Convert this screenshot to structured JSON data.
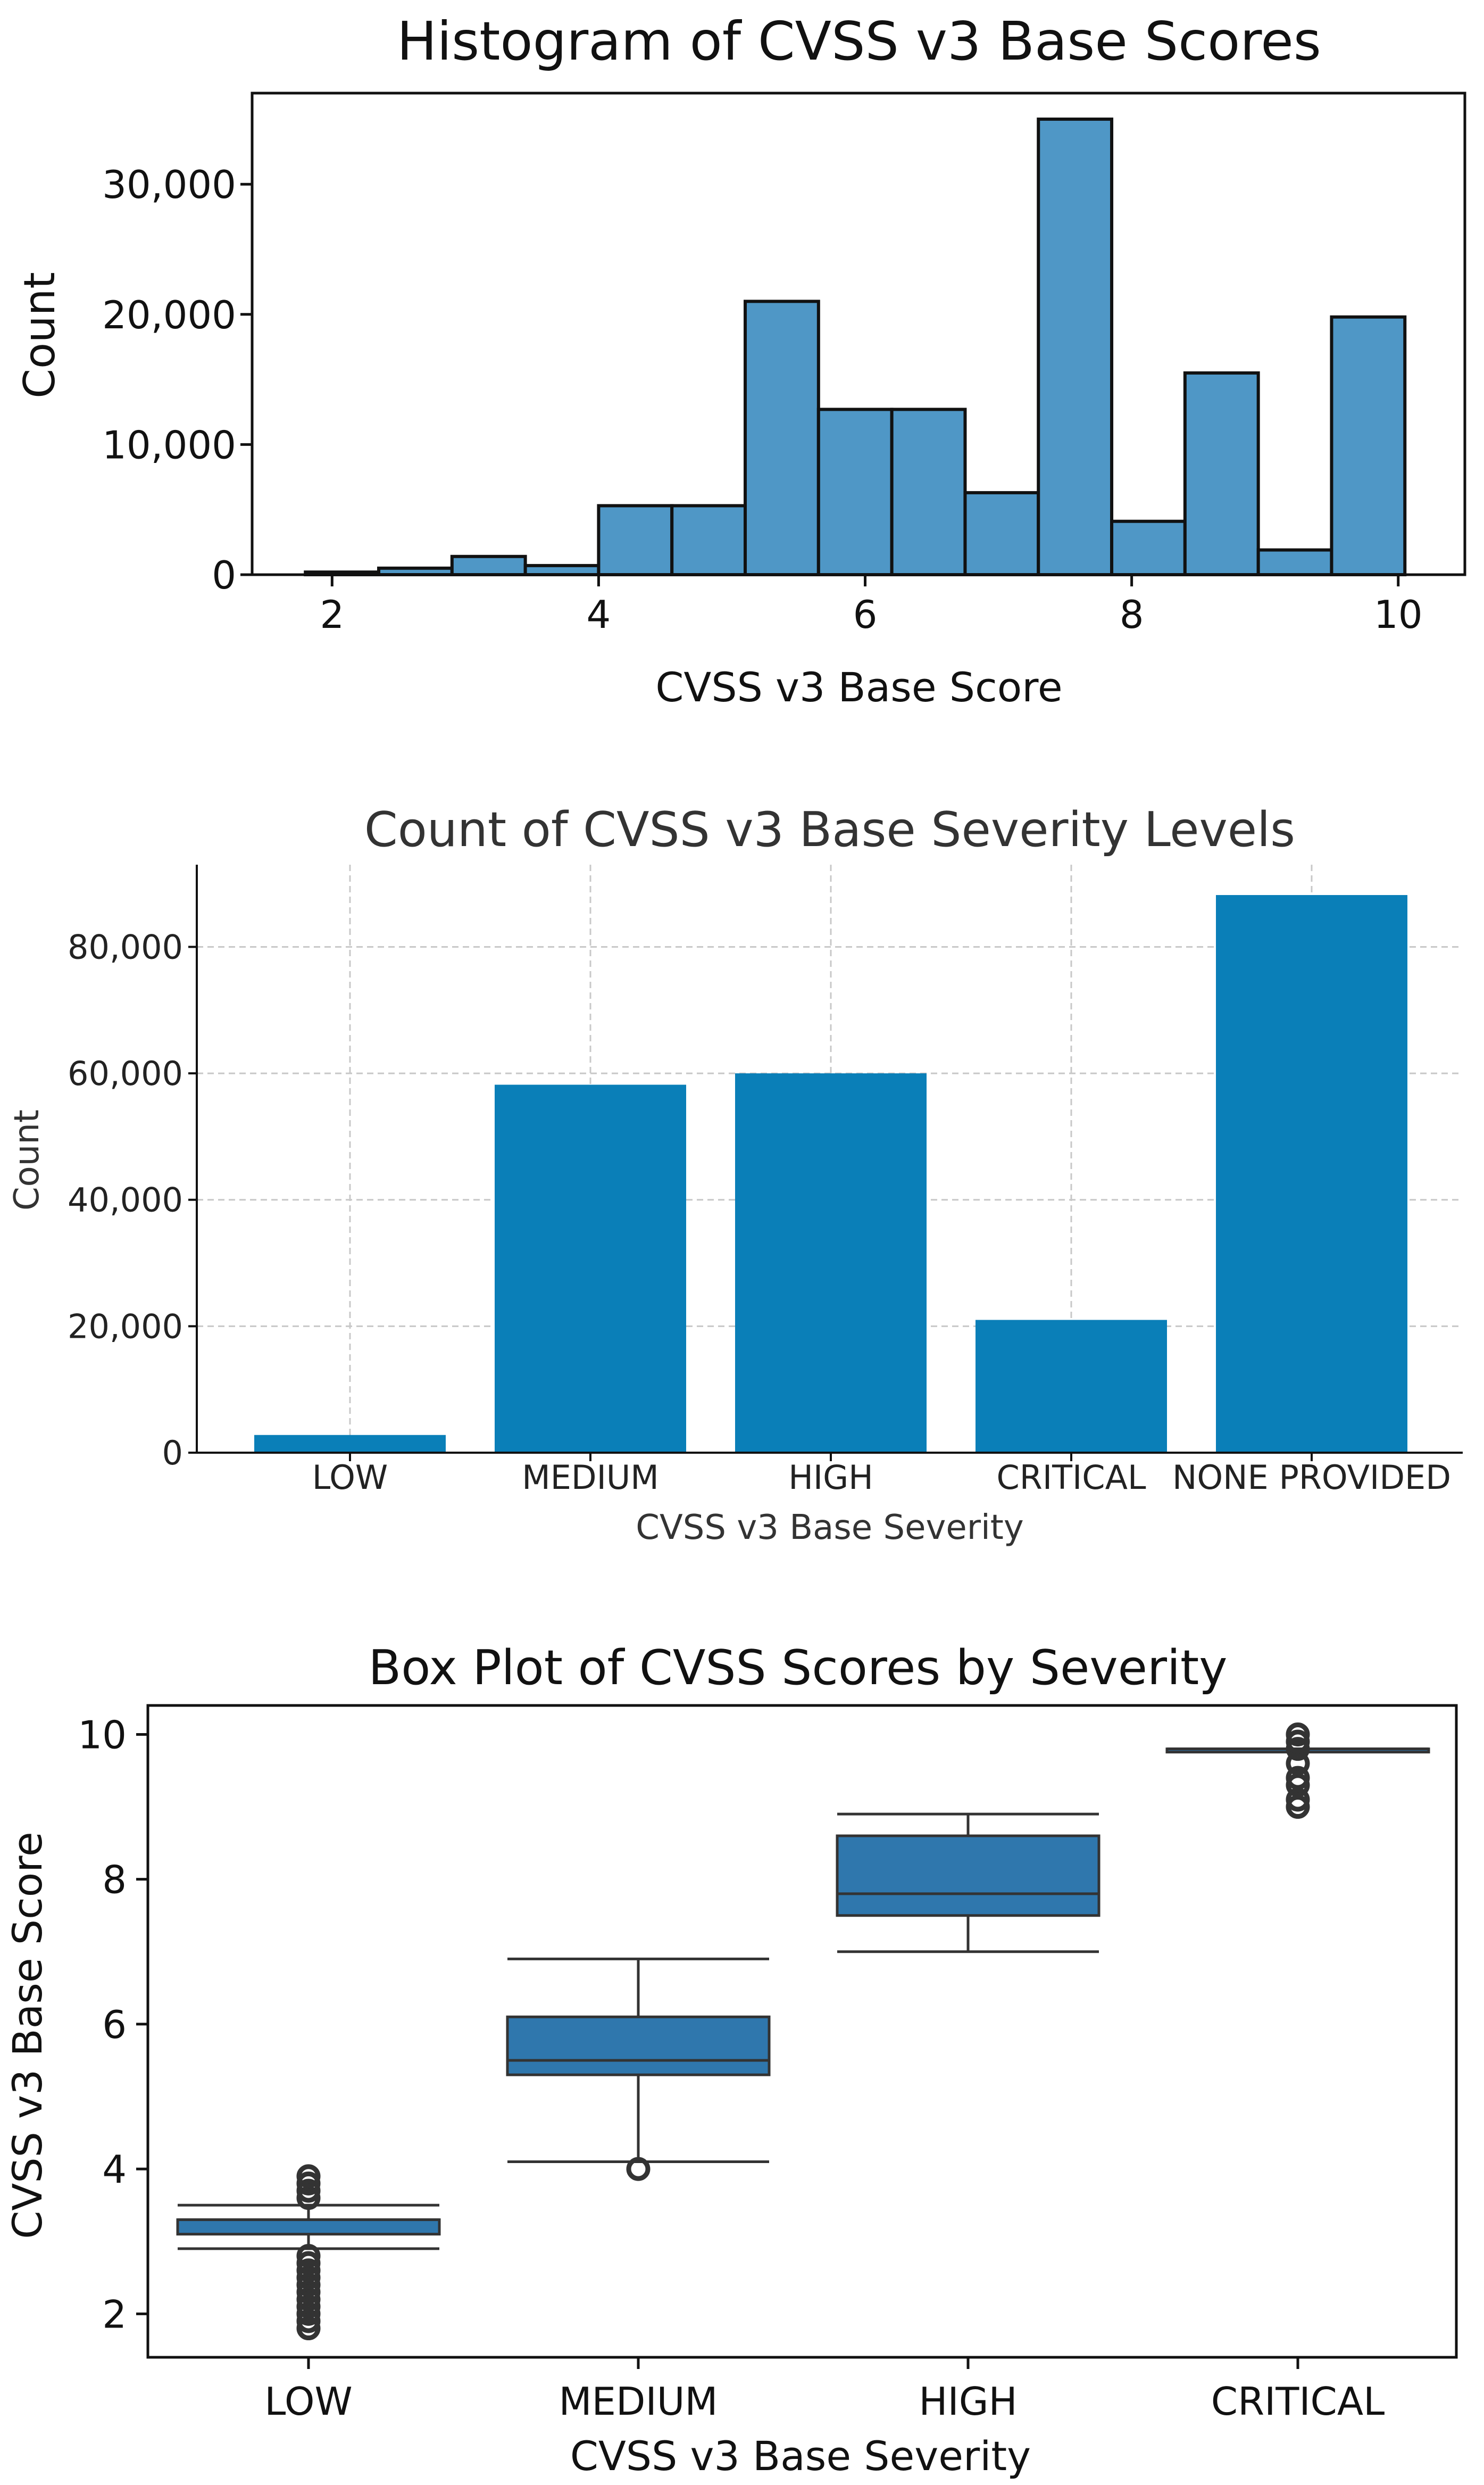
{
  "chart_data": [
    {
      "type": "histogram",
      "title": "Histogram of CVSS v3 Base Scores",
      "xlabel": "CVSS v3 Base Score",
      "ylabel": "Count",
      "xlim": [
        1.4,
        10.5
      ],
      "ylim": [
        0,
        37000
      ],
      "xticks": [
        2,
        4,
        6,
        8,
        10
      ],
      "yticks": [
        0,
        10000,
        20000,
        30000
      ],
      "ytick_labels": [
        "0",
        "10,000",
        "20,000",
        "30,000"
      ],
      "grid": false,
      "bar_color": "#4f97c6",
      "edge_color": "#111111",
      "bins": [
        {
          "x0": 1.8,
          "x1": 2.35,
          "count": 200
        },
        {
          "x0": 2.35,
          "x1": 2.9,
          "count": 500
        },
        {
          "x0": 2.9,
          "x1": 3.45,
          "count": 1400
        },
        {
          "x0": 3.45,
          "x1": 4.0,
          "count": 700
        },
        {
          "x0": 4.0,
          "x1": 4.55,
          "count": 5300
        },
        {
          "x0": 4.55,
          "x1": 5.1,
          "count": 5300
        },
        {
          "x0": 5.1,
          "x1": 5.65,
          "count": 21000
        },
        {
          "x0": 5.65,
          "x1": 6.2,
          "count": 12700
        },
        {
          "x0": 6.2,
          "x1": 6.75,
          "count": 12700
        },
        {
          "x0": 6.75,
          "x1": 7.3,
          "count": 6300
        },
        {
          "x0": 7.3,
          "x1": 7.85,
          "count": 35000
        },
        {
          "x0": 7.85,
          "x1": 8.4,
          "count": 4100
        },
        {
          "x0": 8.4,
          "x1": 8.95,
          "count": 15500
        },
        {
          "x0": 8.95,
          "x1": 9.5,
          "count": 1900
        },
        {
          "x0": 9.5,
          "x1": 10.05,
          "count": 19800
        }
      ]
    },
    {
      "type": "bar",
      "title": "Count of CVSS v3 Base Severity Levels",
      "xlabel": "CVSS v3 Base Severity",
      "ylabel": "Count",
      "categories": [
        "LOW",
        "MEDIUM",
        "HIGH",
        "CRITICAL",
        "NONE PROVIDED"
      ],
      "values": [
        2800,
        58200,
        60000,
        21000,
        88200
      ],
      "ylim": [
        0,
        93000
      ],
      "yticks": [
        0,
        20000,
        40000,
        60000,
        80000
      ],
      "ytick_labels": [
        "0",
        "20,000",
        "40,000",
        "60,000",
        "80,000"
      ],
      "grid": true,
      "bar_color": "#0a7fb8"
    },
    {
      "type": "box",
      "title": "Box Plot of CVSS Scores by Severity",
      "xlabel": "CVSS v3 Base Severity",
      "ylabel": "CVSS v3 Base Score",
      "categories": [
        "LOW",
        "MEDIUM",
        "HIGH",
        "CRITICAL"
      ],
      "ylim": [
        1.4,
        10.4
      ],
      "yticks": [
        2,
        4,
        6,
        8,
        10
      ],
      "grid": false,
      "box_color": "#2f77ad",
      "boxes": [
        {
          "whisker_low": 2.9,
          "q1": 3.1,
          "median": 3.3,
          "q3": 3.3,
          "whisker_high": 3.5,
          "outliers": [
            1.8,
            1.9,
            2.0,
            2.1,
            2.2,
            2.3,
            2.4,
            2.5,
            2.6,
            2.7,
            2.8,
            3.6,
            3.7,
            3.8,
            3.9
          ]
        },
        {
          "whisker_low": 4.1,
          "q1": 5.3,
          "median": 5.5,
          "q3": 6.1,
          "whisker_high": 6.9,
          "outliers": [
            4.0
          ]
        },
        {
          "whisker_low": 7.0,
          "q1": 7.5,
          "median": 7.8,
          "q3": 8.6,
          "whisker_high": 8.9,
          "outliers": []
        },
        {
          "whisker_low": 9.8,
          "q1": 9.8,
          "median": 9.8,
          "q3": 9.8,
          "whisker_high": 9.8,
          "outliers": [
            9.0,
            9.1,
            9.3,
            9.4,
            9.6,
            9.8,
            9.9,
            10.0
          ]
        }
      ]
    }
  ]
}
